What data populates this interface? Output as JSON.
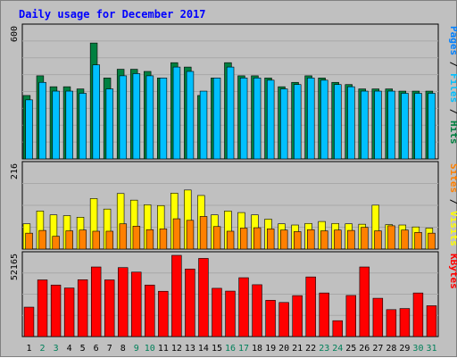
{
  "chart_data": {
    "type": "bar",
    "title": "Daily usage for December 2017",
    "categories": [
      "1",
      "2",
      "3",
      "4",
      "5",
      "6",
      "7",
      "8",
      "9",
      "10",
      "11",
      "12",
      "13",
      "14",
      "15",
      "16",
      "17",
      "18",
      "19",
      "20",
      "21",
      "22",
      "23",
      "24",
      "25",
      "26",
      "27",
      "28",
      "29",
      "30",
      "31"
    ],
    "weekend_days": [
      "2",
      "3",
      "9",
      "10",
      "16",
      "17",
      "23",
      "24",
      "30",
      "31"
    ],
    "panels": [
      {
        "name": "pages-files-hits",
        "ymax_label": "600",
        "ymax": 600,
        "right_label": [
          "Pages",
          "Files",
          "Hits"
        ],
        "series": [
          {
            "name": "Hits",
            "color": "#008040",
            "values": [
              290,
              380,
              330,
              330,
              320,
              530,
              370,
              410,
              410,
              400,
              370,
              440,
              420,
              290,
              370,
              440,
              380,
              380,
              370,
              330,
              350,
              380,
              370,
              350,
              340,
              320,
              320,
              320,
              310,
              310,
              310
            ]
          },
          {
            "name": "Files",
            "color": "#00c0ff",
            "values": [
              270,
              350,
              310,
              310,
              300,
              430,
              320,
              380,
              390,
              380,
              370,
              420,
              400,
              310,
              370,
              420,
              370,
              370,
              360,
              320,
              340,
              370,
              360,
              340,
              330,
              310,
              310,
              310,
              300,
              300,
              300
            ]
          },
          {
            "name": "Pages",
            "color": "#0080ff",
            "values": [
              0,
              0,
              0,
              0,
              0,
              0,
              0,
              0,
              0,
              0,
              0,
              0,
              0,
              0,
              0,
              0,
              0,
              0,
              0,
              0,
              0,
              0,
              0,
              0,
              0,
              0,
              0,
              0,
              0,
              0,
              0
            ]
          }
        ]
      },
      {
        "name": "visits-sites",
        "ymax_label": "216",
        "ymax": 216,
        "right_label": [
          "Sites",
          "Visits"
        ],
        "series": [
          {
            "name": "Visits",
            "color": "#ffff00",
            "values": [
              65,
              98,
              88,
              86,
              82,
              130,
              103,
              143,
              126,
              114,
              112,
              144,
              152,
              138,
              88,
              98,
              94,
              88,
              77,
              65,
              62,
              66,
              71,
              66,
              65,
              64,
              113,
              63,
              62,
              57,
              54
            ]
          },
          {
            "name": "Sites",
            "color": "#ff8000",
            "values": [
              41,
              48,
              33,
              47,
              49,
              46,
              46,
              65,
              59,
              50,
              52,
              78,
              74,
              84,
              58,
              46,
              54,
              55,
              52,
              49,
              45,
              50,
              47,
              49,
              48,
              56,
              47,
              60,
              49,
              43,
              41
            ]
          }
        ]
      },
      {
        "name": "kbytes",
        "ymax_label": "52165",
        "ymax": 52165,
        "right_label": [
          "KBytes"
        ],
        "series": [
          {
            "name": "KBytes",
            "color": "#ff0000",
            "values": [
              18900,
              36400,
              33100,
              31200,
              36500,
              44700,
              36400,
              44300,
              41400,
              33100,
              29100,
              52165,
              43400,
              50200,
              31000,
              29200,
              37800,
              33300,
              23300,
              21900,
              26300,
              38300,
              28000,
              10200,
              26400,
              44700,
              24600,
              17300,
              18000,
              28000,
              19800
            ]
          }
        ]
      }
    ]
  }
}
